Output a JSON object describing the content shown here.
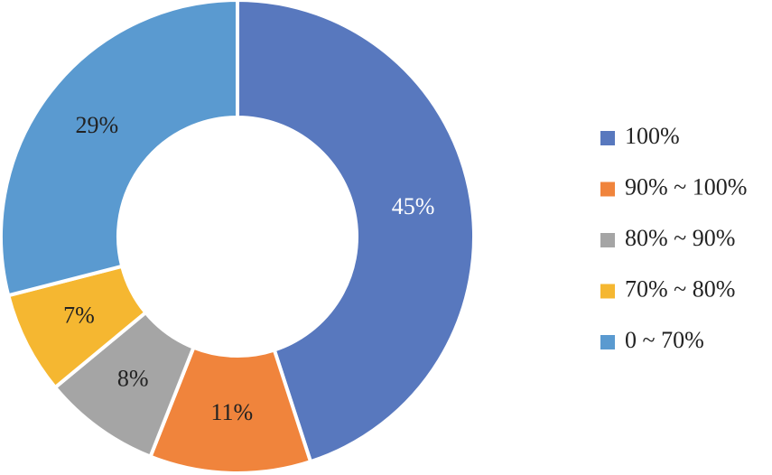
{
  "chart_data": {
    "type": "donut",
    "categories": [
      "100%",
      "90% ~ 100%",
      "80% ~ 90%",
      "70% ~ 80%",
      "0 ~ 70%"
    ],
    "values": [
      45,
      11,
      8,
      7,
      29
    ],
    "value_labels": [
      "45%",
      "11%",
      "8%",
      "7%",
      "29%"
    ],
    "colors": [
      "#5878be",
      "#f0843c",
      "#a5a5a5",
      "#f5b731",
      "#5a9ad0"
    ],
    "legend": "right"
  }
}
